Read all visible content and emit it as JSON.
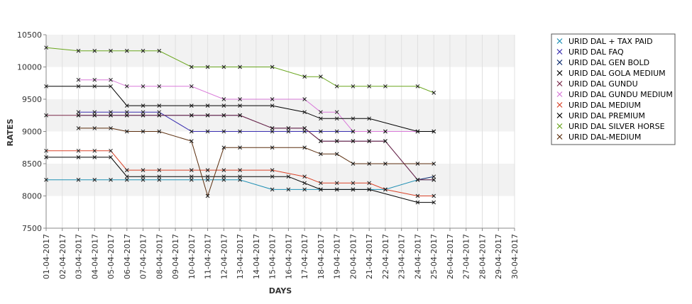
{
  "chart_data": {
    "type": "line",
    "title": "",
    "xlabel": "DAYS",
    "ylabel": "RATES",
    "ylim": [
      7500,
      10500
    ],
    "yticks": [
      7500,
      8000,
      8500,
      9000,
      9500,
      10000,
      10500
    ],
    "grid": true,
    "legend_position": "right",
    "categories": [
      "01-04-2017",
      "02-04-2017",
      "03-04-2017",
      "04-04-2017",
      "05-04-2017",
      "06-04-2017",
      "07-04-2017",
      "08-04-2017",
      "09-04-2017",
      "10-04-2017",
      "11-04-2017",
      "12-04-2017",
      "13-04-2017",
      "14-04-2017",
      "15-04-2017",
      "16-04-2017",
      "17-04-2017",
      "18-04-2017",
      "19-04-2017",
      "20-04-2017",
      "21-04-2017",
      "22-04-2017",
      "23-04-2017",
      "24-04-2017",
      "25-04-2017",
      "26-04-2017",
      "27-04-2017",
      "28-04-2017",
      "29-04-2017",
      "30-04-2017"
    ],
    "series": [
      {
        "name": "URID DAL + TAX PAID",
        "color": "#1f8fb4",
        "values": [
          8250,
          null,
          8250,
          8250,
          8250,
          8250,
          8250,
          8250,
          null,
          8250,
          8250,
          8250,
          8250,
          null,
          8100,
          8100,
          8100,
          8100,
          8100,
          8100,
          8100,
          8100,
          null,
          8250,
          8250,
          null,
          null,
          null,
          null,
          null
        ]
      },
      {
        "name": "URID DAL FAQ",
        "color": "#3a2fb0",
        "values": [
          null,
          null,
          9300,
          9300,
          9300,
          9300,
          9300,
          9300,
          null,
          9000,
          9000,
          9000,
          9000,
          null,
          9000,
          9000,
          9000,
          9000,
          9000,
          9000,
          9000,
          9000,
          null,
          9000,
          9000,
          null,
          null,
          null,
          null,
          null
        ]
      },
      {
        "name": "URID DAL GEN BOLD",
        "color": "#0b2a6e",
        "values": [
          null,
          null,
          9250,
          9250,
          9250,
          9250,
          9250,
          9250,
          null,
          9250,
          9250,
          9250,
          9250,
          null,
          9050,
          9050,
          9050,
          8850,
          8850,
          8850,
          8850,
          8850,
          null,
          8250,
          8300,
          null,
          null,
          null,
          null,
          null
        ]
      },
      {
        "name": "URID DAL GOLA MEDIUM",
        "color": "#000000",
        "values": [
          8600,
          null,
          8600,
          8600,
          8600,
          8300,
          8300,
          8300,
          null,
          8300,
          8300,
          8300,
          8300,
          null,
          8300,
          8300,
          8200,
          8100,
          8100,
          8100,
          8100,
          null,
          null,
          7900,
          7900,
          null,
          null,
          null,
          null,
          null
        ]
      },
      {
        "name": "URID DAL GUNDU",
        "color": "#7a2a4a",
        "values": [
          9250,
          null,
          9250,
          9250,
          9250,
          9250,
          9250,
          9250,
          null,
          9250,
          9250,
          9250,
          9250,
          null,
          9050,
          9050,
          9050,
          8850,
          8850,
          8850,
          8850,
          8850,
          null,
          8250,
          8250,
          null,
          null,
          null,
          null,
          null
        ]
      },
      {
        "name": "URID DAL GUNDU MEDIUM",
        "color": "#d97ad9",
        "values": [
          null,
          null,
          9800,
          9800,
          9800,
          9700,
          9700,
          9700,
          null,
          9700,
          null,
          9500,
          9500,
          null,
          9500,
          null,
          9500,
          9300,
          9300,
          9000,
          9000,
          9000,
          null,
          9000,
          null,
          null,
          null,
          null,
          null,
          null
        ]
      },
      {
        "name": "URID DAL MEDIUM",
        "color": "#d9442a",
        "values": [
          8700,
          null,
          8700,
          8700,
          8700,
          8400,
          8400,
          8400,
          null,
          8400,
          8400,
          8400,
          8400,
          null,
          8400,
          null,
          8300,
          8200,
          8200,
          8200,
          8200,
          8100,
          null,
          8000,
          8000,
          null,
          null,
          null,
          null,
          null
        ]
      },
      {
        "name": "URID DAL PREMIUM",
        "color": "#000000",
        "values": [
          9700,
          null,
          9700,
          9700,
          9700,
          9400,
          9400,
          9400,
          null,
          9400,
          9400,
          9400,
          9400,
          null,
          9400,
          null,
          9300,
          9200,
          9200,
          9200,
          9200,
          null,
          null,
          9000,
          9000,
          null,
          null,
          null,
          null,
          null
        ]
      },
      {
        "name": "URID DAL SILVER HORSE",
        "color": "#6aa61e",
        "values": [
          10300,
          null,
          10250,
          10250,
          10250,
          10250,
          10250,
          10250,
          null,
          10000,
          10000,
          10000,
          10000,
          null,
          10000,
          null,
          9850,
          9850,
          9700,
          9700,
          9700,
          9700,
          null,
          9700,
          9600,
          null,
          null,
          null,
          null,
          null
        ]
      },
      {
        "name": "URID DAL-MEDIUM",
        "color": "#5c2f0f",
        "values": [
          null,
          null,
          9050,
          9050,
          9050,
          9000,
          9000,
          9000,
          null,
          8850,
          8000,
          8750,
          8750,
          null,
          8750,
          null,
          8750,
          8650,
          8650,
          8500,
          8500,
          8500,
          null,
          8500,
          8500,
          null,
          null,
          null,
          null,
          null
        ]
      }
    ]
  }
}
